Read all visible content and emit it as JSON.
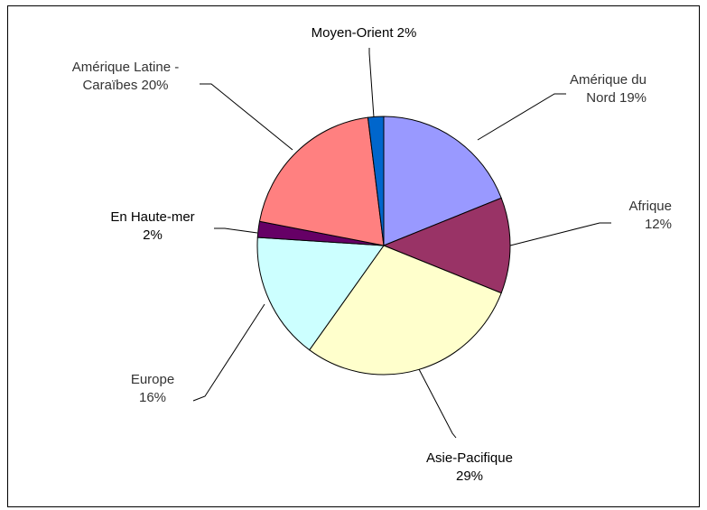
{
  "chart_data": {
    "type": "pie",
    "title": "",
    "start_at": "top",
    "direction": "clockwise",
    "slices": [
      {
        "label": "Amérique du Nord",
        "value": 19,
        "display": [
          "Amérique du",
          "Nord    19%"
        ],
        "color": "#9999ff"
      },
      {
        "label": "Afrique",
        "value": 12,
        "display": [
          "Afrique",
          "12%"
        ],
        "color": "#993366"
      },
      {
        "label": "Asie-Pacifique",
        "value": 29,
        "display": [
          "Asie-Pacifique",
          "29%"
        ],
        "color": "#ffffcc"
      },
      {
        "label": "Europe",
        "value": 16,
        "display": [
          "Europe",
          "16%"
        ],
        "color": "#ccffff"
      },
      {
        "label": "En Haute-mer",
        "value": 2,
        "display": [
          "En Haute-mer",
          "2%"
        ],
        "color": "#660066"
      },
      {
        "label": "Amérique Latine - Caraïbes",
        "value": 20,
        "display": [
          "Amérique Latine -",
          "Caraïbes   20%"
        ],
        "color": "#ff8080"
      },
      {
        "label": "Moyen-Orient",
        "value": 2,
        "display": [
          "Moyen-Orient 2%"
        ],
        "color": "#0066cc"
      }
    ]
  }
}
